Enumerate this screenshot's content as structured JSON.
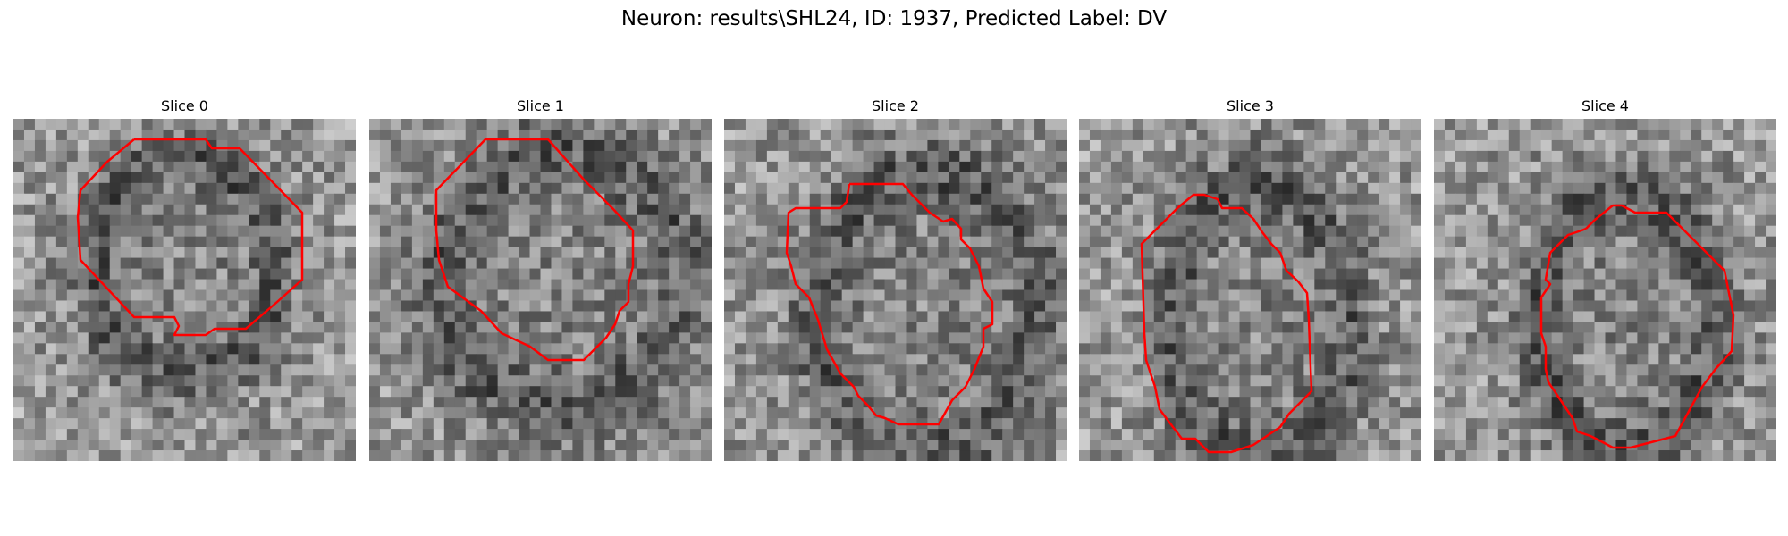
{
  "figure": {
    "title": "Neuron: results\\SHL24, ID: 1937, Predicted Label: DV",
    "contour_color": "#ff0000",
    "colormap": "gray"
  },
  "panels": [
    {
      "title": "Slice 0",
      "seed": 11
    },
    {
      "title": "Slice 1",
      "seed": 23
    },
    {
      "title": "Slice 2",
      "seed": 37
    },
    {
      "title": "Slice 3",
      "seed": 51
    },
    {
      "title": "Slice 4",
      "seed": 67
    }
  ]
}
